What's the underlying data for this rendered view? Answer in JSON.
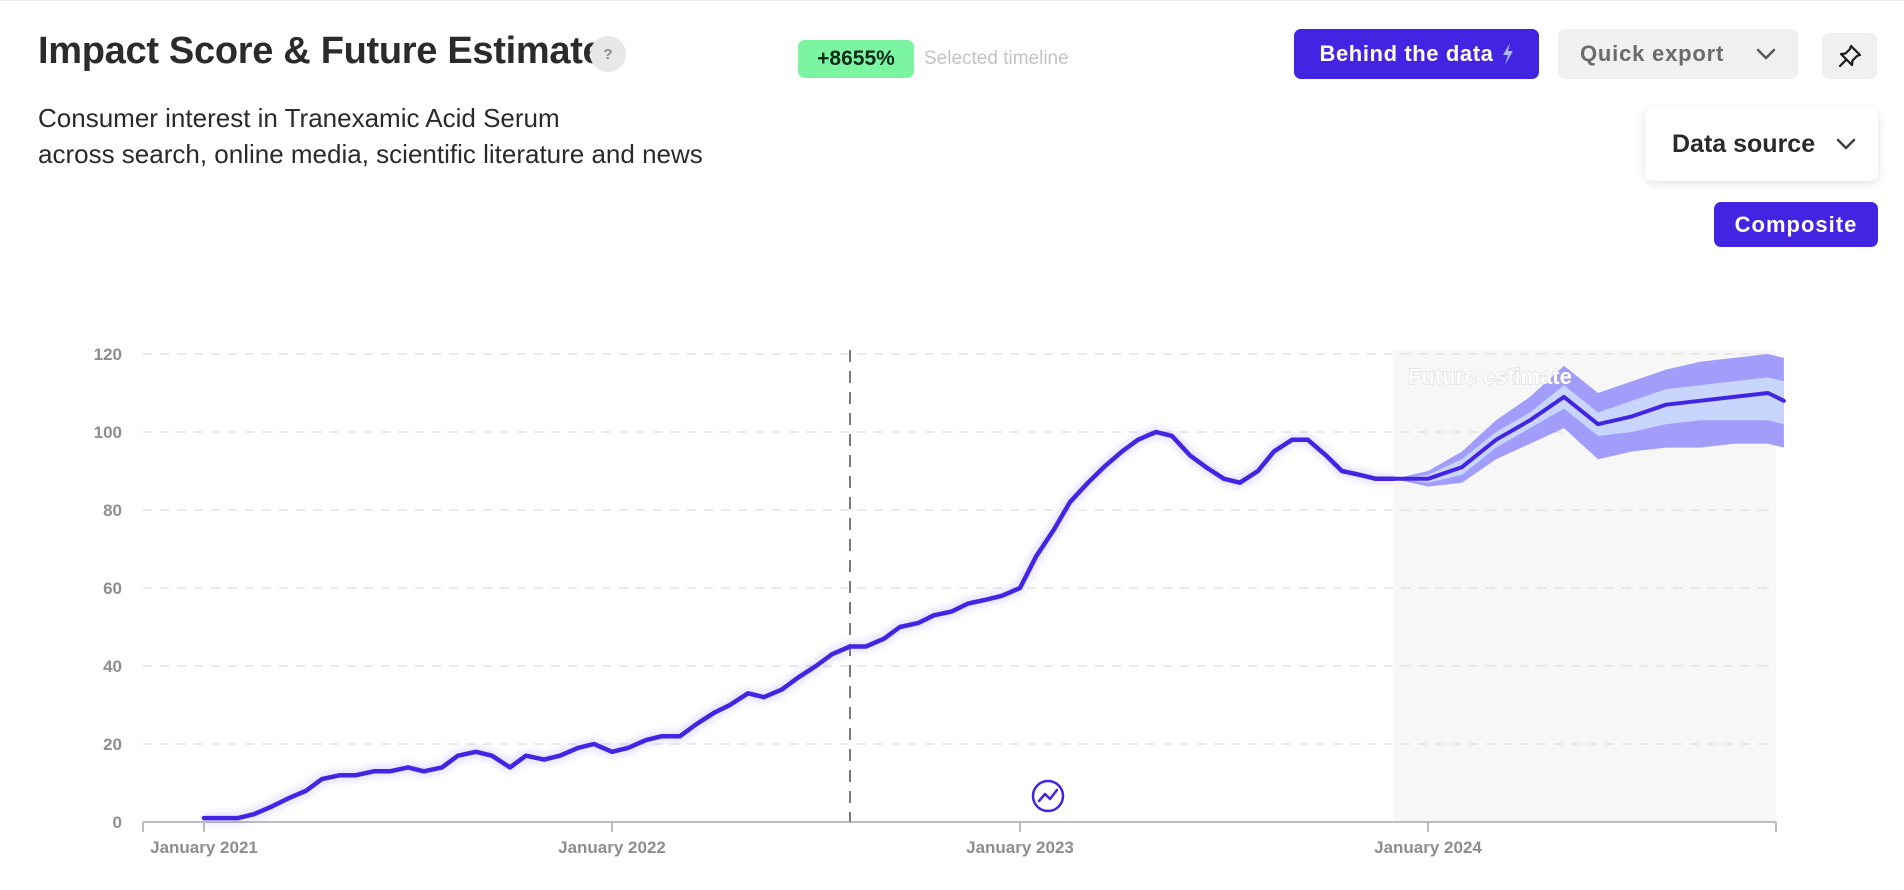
{
  "header": {
    "title": "Impact Score & Future Estimate",
    "help_label": "?",
    "subtitle_line1": "Consumer interest in Tranexamic Acid Serum",
    "subtitle_line2": "across search, online media, scientific literature and news",
    "change_badge": "+8655%",
    "change_note": "Selected timeline"
  },
  "toolbar": {
    "behind_label": "Behind the data",
    "export_label": "Quick export",
    "pin_icon": "pin-icon",
    "datasource_label": "Data source",
    "composite_label": "Composite"
  },
  "colors": {
    "accent": "#4424e3",
    "badge": "#7cf5a2",
    "band_outer": "#a29dfa",
    "band_inner": "#c8d6fd",
    "forecast_bg": "#f7f7f7"
  },
  "chart_data": {
    "type": "line",
    "title": "Impact Score & Future Estimate",
    "xlabel": "",
    "ylabel": "",
    "ylim": [
      0,
      120
    ],
    "yticks": [
      "0",
      "20",
      "40",
      "60",
      "80",
      "100",
      "120"
    ],
    "xticks": [
      "January 2021",
      "January 2022",
      "January 2023",
      "January 2024"
    ],
    "grid": true,
    "marker_line": "2022-08",
    "forecast_label": "Future estimate",
    "series": [
      {
        "values": [
          [
            "2021-01",
            1
          ],
          [
            "2021-01-15",
            1
          ],
          [
            "2021-02",
            1
          ],
          [
            "2021-02-15",
            2
          ],
          [
            "2021-03",
            4
          ],
          [
            "2021-03-15",
            6
          ],
          [
            "2021-04",
            8
          ],
          [
            "2021-04-15",
            11
          ],
          [
            "2021-05",
            12
          ],
          [
            "2021-05-15",
            12
          ],
          [
            "2021-06",
            13
          ],
          [
            "2021-06-15",
            13
          ],
          [
            "2021-07",
            14
          ],
          [
            "2021-07-15",
            13
          ],
          [
            "2021-08",
            14
          ],
          [
            "2021-08-15",
            17
          ],
          [
            "2021-09",
            18
          ],
          [
            "2021-09-15",
            17
          ],
          [
            "2021-10",
            14
          ],
          [
            "2021-10-15",
            17
          ],
          [
            "2021-11",
            16
          ],
          [
            "2021-11-15",
            17
          ],
          [
            "2021-12",
            19
          ],
          [
            "2021-12-15",
            20
          ],
          [
            "2022-01",
            18
          ],
          [
            "2022-01-15",
            19
          ],
          [
            "2022-02",
            21
          ],
          [
            "2022-02-15",
            22
          ],
          [
            "2022-03",
            22
          ],
          [
            "2022-03-15",
            25
          ],
          [
            "2022-04",
            28
          ],
          [
            "2022-04-15",
            30
          ],
          [
            "2022-05",
            33
          ],
          [
            "2022-05-15",
            32
          ],
          [
            "2022-06",
            34
          ],
          [
            "2022-06-15",
            37
          ],
          [
            "2022-07",
            40
          ],
          [
            "2022-07-15",
            43
          ],
          [
            "2022-08",
            45
          ],
          [
            "2022-08-15",
            45
          ],
          [
            "2022-09",
            47
          ],
          [
            "2022-09-15",
            50
          ],
          [
            "2022-10",
            51
          ],
          [
            "2022-10-15",
            53
          ],
          [
            "2022-11",
            54
          ],
          [
            "2022-11-15",
            56
          ],
          [
            "2022-12",
            57
          ],
          [
            "2022-12-15",
            58
          ],
          [
            "2023-01",
            60
          ],
          [
            "2023-01-15",
            68
          ],
          [
            "2023-02",
            75
          ],
          [
            "2023-02-15",
            82
          ],
          [
            "2023-03",
            87
          ],
          [
            "2023-03-15",
            91
          ],
          [
            "2023-04",
            95
          ],
          [
            "2023-04-15",
            98
          ],
          [
            "2023-05",
            100
          ],
          [
            "2023-05-15",
            99
          ],
          [
            "2023-06",
            94
          ],
          [
            "2023-06-15",
            91
          ],
          [
            "2023-07",
            88
          ],
          [
            "2023-07-15",
            87
          ],
          [
            "2023-08",
            90
          ],
          [
            "2023-08-15",
            95
          ],
          [
            "2023-09",
            98
          ],
          [
            "2023-09-15",
            98
          ],
          [
            "2023-10",
            94
          ],
          [
            "2023-10-15",
            90
          ],
          [
            "2023-11",
            89
          ],
          [
            "2023-11-15",
            88
          ],
          [
            "2023-12",
            88
          ]
        ]
      },
      {
        "name": "Future estimate",
        "values": [
          [
            "2023-12",
            88
          ],
          [
            "2024-01",
            88
          ],
          [
            "2024-02",
            91
          ],
          [
            "2024-03",
            98
          ],
          [
            "2024-04",
            103
          ],
          [
            "2024-05",
            109
          ],
          [
            "2024-06",
            102
          ],
          [
            "2024-07",
            104
          ],
          [
            "2024-08",
            107
          ],
          [
            "2024-09",
            108
          ],
          [
            "2024-10",
            109
          ],
          [
            "2024-11",
            110
          ],
          [
            "2024-11-15",
            108
          ]
        ],
        "lower_inner": [
          88,
          87,
          89,
          96,
          101,
          106,
          99,
          100,
          102,
          103,
          103,
          103,
          102
        ],
        "upper_inner": [
          88,
          89,
          93,
          100,
          105,
          112,
          105,
          108,
          111,
          112,
          113,
          114,
          113
        ],
        "lower_outer": [
          88,
          86,
          87,
          93,
          97,
          101,
          93,
          95,
          96,
          96,
          97,
          97,
          96
        ],
        "upper_outer": [
          88,
          90,
          95,
          103,
          109,
          117,
          110,
          113,
          116,
          118,
          119,
          120,
          119
        ]
      }
    ]
  }
}
